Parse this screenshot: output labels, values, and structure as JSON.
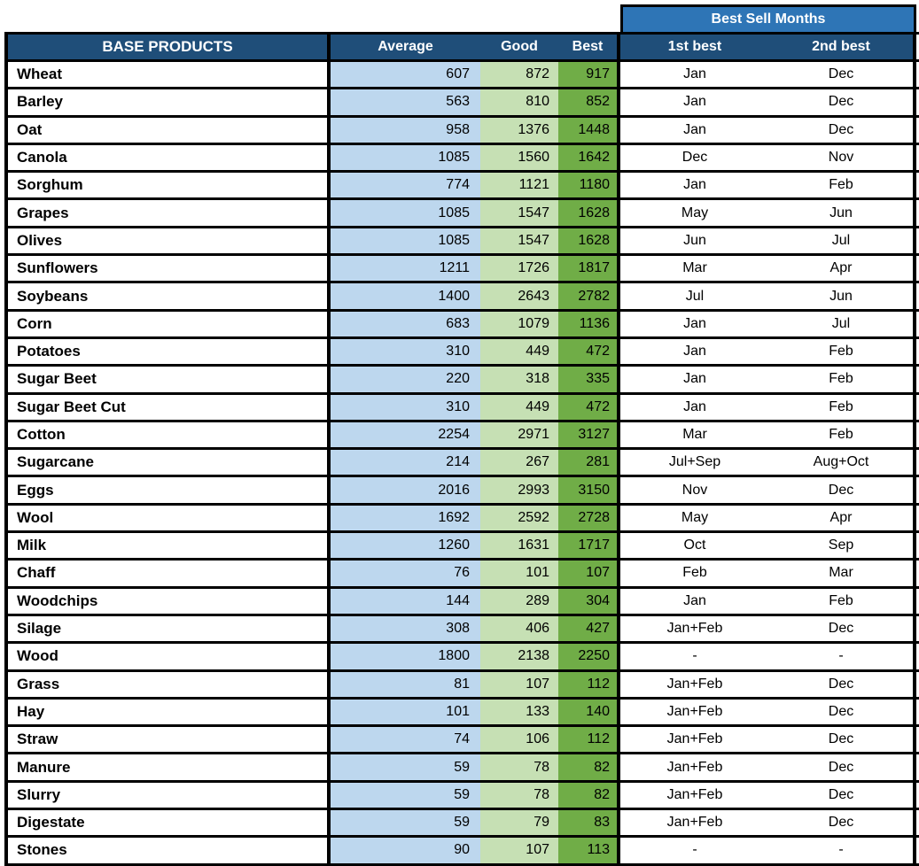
{
  "colors": {
    "header_dark_blue": "#1F4E79",
    "banner_medium_blue": "#2E75B6",
    "average_light_blue": "#BDD7EE",
    "good_light_green": "#C6E0B4",
    "best_green": "#70AD47",
    "grid_black": "#000000"
  },
  "header": {
    "best_sell_months_label": "Best Sell Months",
    "base_products_label": "BASE PRODUCTS",
    "columns": [
      "Average",
      "Good",
      "Best"
    ],
    "month_columns": [
      "1st best",
      "2nd best"
    ]
  },
  "table": {
    "rows": [
      {
        "name": "Wheat",
        "average": 607,
        "good": 872,
        "best": 917,
        "first": "Jan",
        "second": "Dec"
      },
      {
        "name": "Barley",
        "average": 563,
        "good": 810,
        "best": 852,
        "first": "Jan",
        "second": "Dec"
      },
      {
        "name": "Oat",
        "average": 958,
        "good": 1376,
        "best": 1448,
        "first": "Jan",
        "second": "Dec"
      },
      {
        "name": "Canola",
        "average": 1085,
        "good": 1560,
        "best": 1642,
        "first": "Dec",
        "second": "Nov"
      },
      {
        "name": "Sorghum",
        "average": 774,
        "good": 1121,
        "best": 1180,
        "first": "Jan",
        "second": "Feb"
      },
      {
        "name": "Grapes",
        "average": 1085,
        "good": 1547,
        "best": 1628,
        "first": "May",
        "second": "Jun"
      },
      {
        "name": "Olives",
        "average": 1085,
        "good": 1547,
        "best": 1628,
        "first": "Jun",
        "second": "Jul"
      },
      {
        "name": "Sunflowers",
        "average": 1211,
        "good": 1726,
        "best": 1817,
        "first": "Mar",
        "second": "Apr"
      },
      {
        "name": "Soybeans",
        "average": 1400,
        "good": 2643,
        "best": 2782,
        "first": "Jul",
        "second": "Jun"
      },
      {
        "name": "Corn",
        "average": 683,
        "good": 1079,
        "best": 1136,
        "first": "Jan",
        "second": "Jul"
      },
      {
        "name": "Potatoes",
        "average": 310,
        "good": 449,
        "best": 472,
        "first": "Jan",
        "second": "Feb"
      },
      {
        "name": "Sugar Beet",
        "average": 220,
        "good": 318,
        "best": 335,
        "first": "Jan",
        "second": "Feb"
      },
      {
        "name": "Sugar Beet Cut",
        "average": 310,
        "good": 449,
        "best": 472,
        "first": "Jan",
        "second": "Feb"
      },
      {
        "name": "Cotton",
        "average": 2254,
        "good": 2971,
        "best": 3127,
        "first": "Mar",
        "second": "Feb"
      },
      {
        "name": "Sugarcane",
        "average": 214,
        "good": 267,
        "best": 281,
        "first": "Jul+Sep",
        "second": "Aug+Oct"
      },
      {
        "name": "Eggs",
        "average": 2016,
        "good": 2993,
        "best": 3150,
        "first": "Nov",
        "second": "Dec"
      },
      {
        "name": "Wool",
        "average": 1692,
        "good": 2592,
        "best": 2728,
        "first": "May",
        "second": "Apr"
      },
      {
        "name": "Milk",
        "average": 1260,
        "good": 1631,
        "best": 1717,
        "first": "Oct",
        "second": "Sep"
      },
      {
        "name": "Chaff",
        "average": 76,
        "good": 101,
        "best": 107,
        "first": "Feb",
        "second": "Mar"
      },
      {
        "name": "Woodchips",
        "average": 144,
        "good": 289,
        "best": 304,
        "first": "Jan",
        "second": "Feb"
      },
      {
        "name": "Silage",
        "average": 308,
        "good": 406,
        "best": 427,
        "first": "Jan+Feb",
        "second": "Dec"
      },
      {
        "name": "Wood",
        "average": 1800,
        "good": 2138,
        "best": 2250,
        "first": "-",
        "second": "-"
      },
      {
        "name": "Grass",
        "average": 81,
        "good": 107,
        "best": 112,
        "first": "Jan+Feb",
        "second": "Dec"
      },
      {
        "name": "Hay",
        "average": 101,
        "good": 133,
        "best": 140,
        "first": "Jan+Feb",
        "second": "Dec"
      },
      {
        "name": "Straw",
        "average": 74,
        "good": 106,
        "best": 112,
        "first": "Jan+Feb",
        "second": "Dec"
      },
      {
        "name": "Manure",
        "average": 59,
        "good": 78,
        "best": 82,
        "first": "Jan+Feb",
        "second": "Dec"
      },
      {
        "name": "Slurry",
        "average": 59,
        "good": 78,
        "best": 82,
        "first": "Jan+Feb",
        "second": "Dec"
      },
      {
        "name": "Digestate",
        "average": 59,
        "good": 79,
        "best": 83,
        "first": "Jan+Feb",
        "second": "Dec"
      },
      {
        "name": "Stones",
        "average": 90,
        "good": 107,
        "best": 113,
        "first": "-",
        "second": "-"
      }
    ]
  }
}
